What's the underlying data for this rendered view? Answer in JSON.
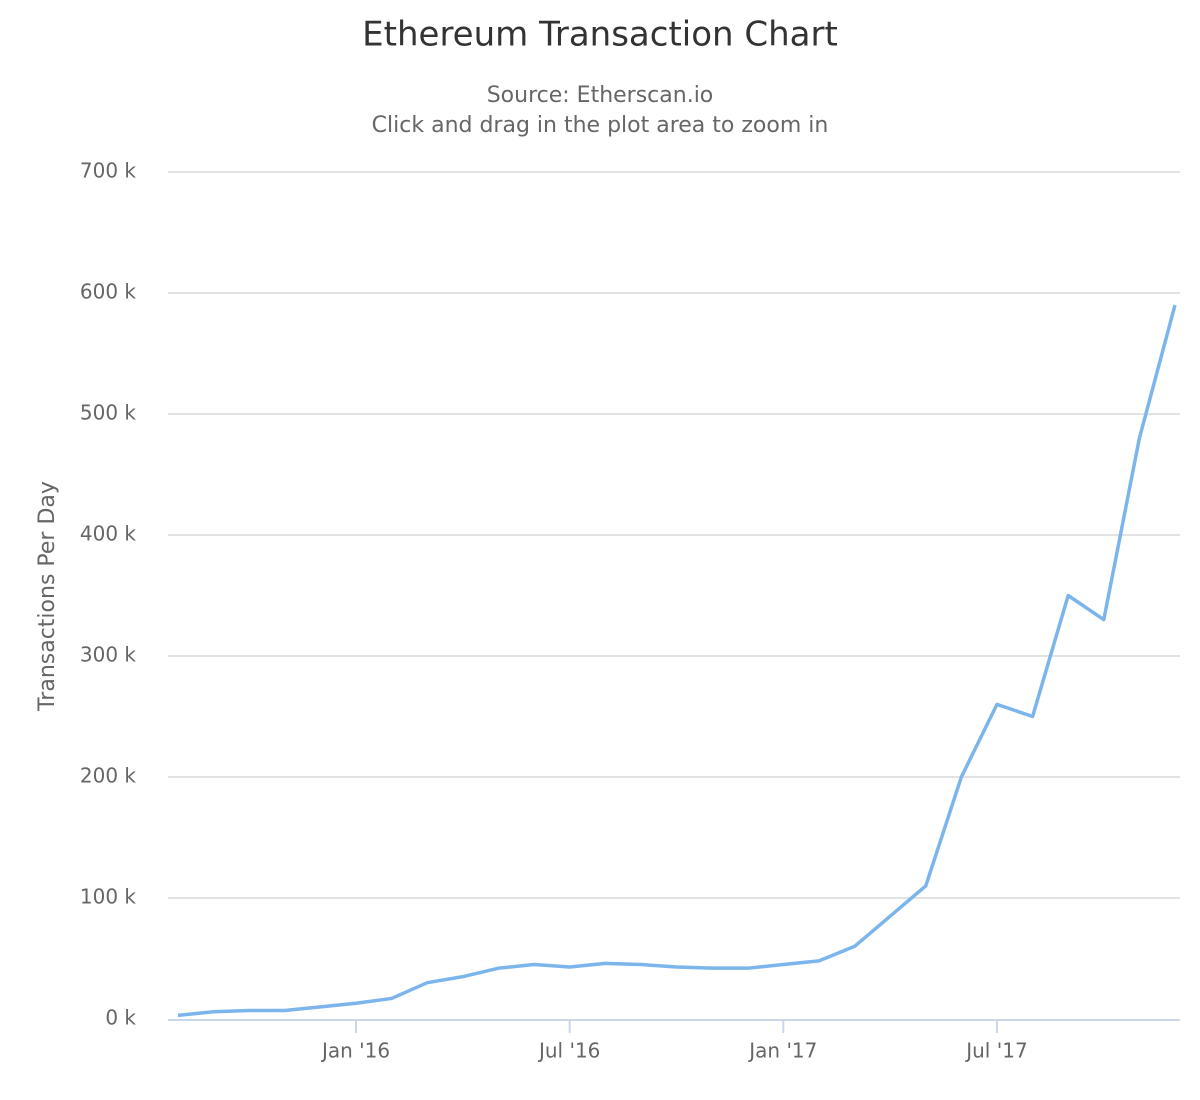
{
  "chart_data": {
    "type": "line",
    "title": "Ethereum Transaction Chart",
    "subtitle": [
      "Source: Etherscan.io",
      "Click and drag in the plot area to zoom in"
    ],
    "y_label": "Transactions Per Day",
    "x": [
      "2015-08",
      "2015-09",
      "2015-10",
      "2015-11",
      "2015-12",
      "2016-01",
      "2016-02",
      "2016-03",
      "2016-04",
      "2016-05",
      "2016-06",
      "2016-07",
      "2016-08",
      "2016-09",
      "2016-10",
      "2016-11",
      "2016-12",
      "2017-01",
      "2017-02",
      "2017-03",
      "2017-04",
      "2017-05",
      "2017-06",
      "2017-07",
      "2017-08",
      "2017-09",
      "2017-10",
      "2017-11",
      "2017-12"
    ],
    "series": [
      {
        "name": "Transactions Per Day",
        "color": "#7cb5ec",
        "values": [
          3000,
          6000,
          7000,
          7000,
          10000,
          13000,
          17000,
          30000,
          35000,
          42000,
          45000,
          43000,
          46000,
          45000,
          43000,
          42000,
          42000,
          45000,
          48000,
          60000,
          85000,
          110000,
          200000,
          260000,
          250000,
          350000,
          330000,
          480000,
          590000
        ]
      }
    ],
    "xlim": [
      "2015-08",
      "2017-12"
    ],
    "xticks": [
      {
        "value": "2016-01",
        "label": "Jan '16"
      },
      {
        "value": "2016-07",
        "label": "Jul '16"
      },
      {
        "value": "2017-01",
        "label": "Jan '17"
      },
      {
        "value": "2017-07",
        "label": "Jul '17"
      }
    ],
    "ylim": [
      0,
      700000
    ],
    "yticks": [
      {
        "value": 0,
        "label": "0 k"
      },
      {
        "value": 100000,
        "label": "100 k"
      },
      {
        "value": 200000,
        "label": "200 k"
      },
      {
        "value": 300000,
        "label": "300 k"
      },
      {
        "value": 400000,
        "label": "400 k"
      },
      {
        "value": 500000,
        "label": "500 k"
      },
      {
        "value": 600000,
        "label": "600 k"
      },
      {
        "value": 700000,
        "label": "700 k"
      }
    ],
    "grid": true
  }
}
